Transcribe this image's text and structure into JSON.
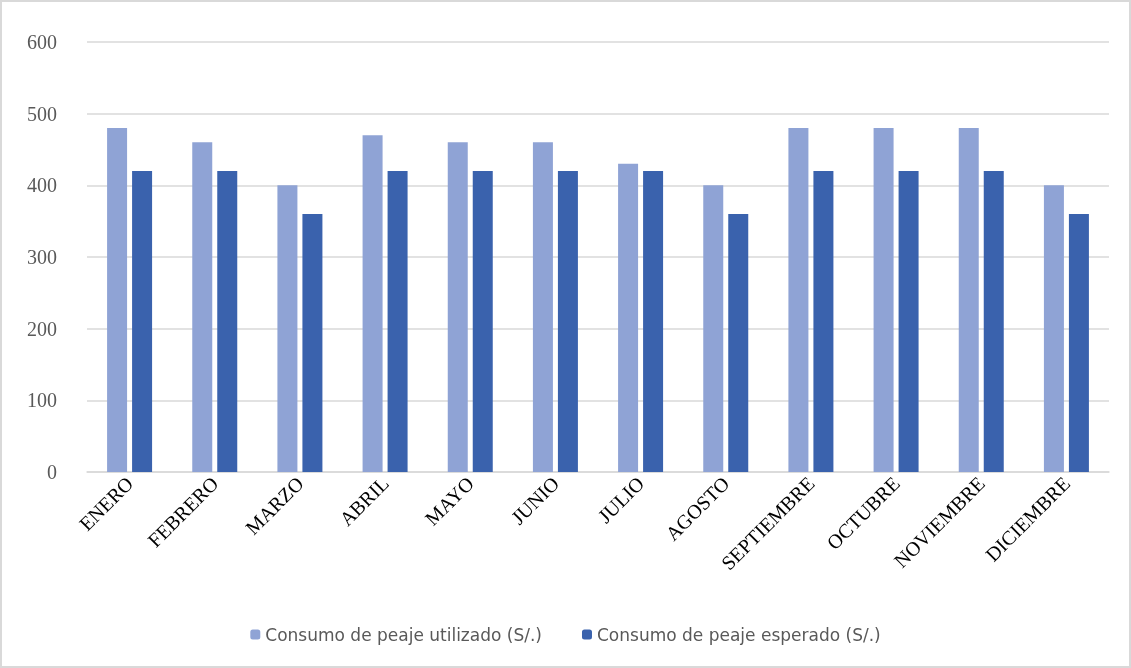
{
  "chart_data": {
    "type": "bar",
    "categories": [
      "ENERO",
      "FEBRERO",
      "MARZO",
      "ABRIL",
      "MAYO",
      "JUNIO",
      "JULIO",
      "AGOSTO",
      "SEPTIEMBRE",
      "OCTUBRE",
      "NOVIEMBRE",
      "DICIEMBRE"
    ],
    "series": [
      {
        "name": "Consumo de peaje utilizado (S/.)",
        "color": "#8fa3d5",
        "values": [
          480,
          460,
          400,
          470,
          460,
          460,
          430,
          400,
          480,
          480,
          480,
          400
        ]
      },
      {
        "name": "Consumo de peaje esperado (S/.)",
        "color": "#3a62ad",
        "values": [
          420,
          420,
          360,
          420,
          420,
          420,
          420,
          360,
          420,
          420,
          420,
          360
        ]
      }
    ],
    "ylim": [
      0,
      600
    ],
    "yticks": [
      0,
      100,
      200,
      300,
      400,
      500,
      600
    ],
    "grid": "y",
    "legend": "bottom"
  }
}
